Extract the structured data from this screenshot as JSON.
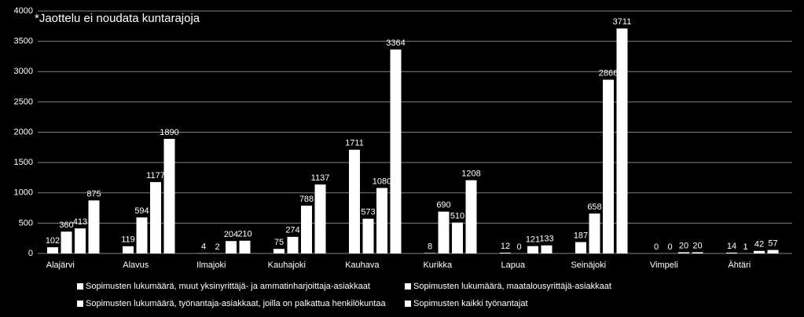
{
  "chart_data": {
    "type": "bar",
    "annotation": "*Jaottelu ei noudata kuntarajoja",
    "categories": [
      "Alajärvi",
      "Alavus",
      "Ilmajoki",
      "Kauhajoki",
      "Kauhava",
      "Kurikka",
      "Lapua",
      "Seinäjoki",
      "Vimpeli",
      "Ähtäri"
    ],
    "series": [
      {
        "name": "Sopimusten lukumäärä, muut yksinyrittäjä- ja ammatinharjoittaja-asiakkaat",
        "color": "#ffffff",
        "values": [
          102,
          119,
          4,
          75,
          1711,
          8,
          12,
          187,
          0,
          14
        ]
      },
      {
        "name": "Sopimusten lukumäärä, maatalousyrittäjä-asiakkaat",
        "color": "#ffffff",
        "values": [
          360,
          594,
          2,
          274,
          573,
          690,
          0,
          658,
          0,
          1
        ]
      },
      {
        "name": "Sopimusten lukumäärä, työnantaja-asiakkaat, joilla on palkattua henkilökuntaa",
        "color": "#ffffff",
        "values": [
          413,
          1177,
          204,
          788,
          1080,
          510,
          121,
          2866,
          20,
          42
        ]
      },
      {
        "name": "Sopimusten kaikki työnantajat",
        "color": "#ffffff",
        "values": [
          875,
          1890,
          210,
          1137,
          3364,
          1208,
          133,
          3711,
          20,
          57
        ]
      }
    ],
    "ylim": [
      0,
      4000
    ],
    "yticks": [
      0,
      500,
      1000,
      1500,
      2000,
      2500,
      3000,
      3500,
      4000
    ],
    "grid": true,
    "legend": "bottom"
  }
}
